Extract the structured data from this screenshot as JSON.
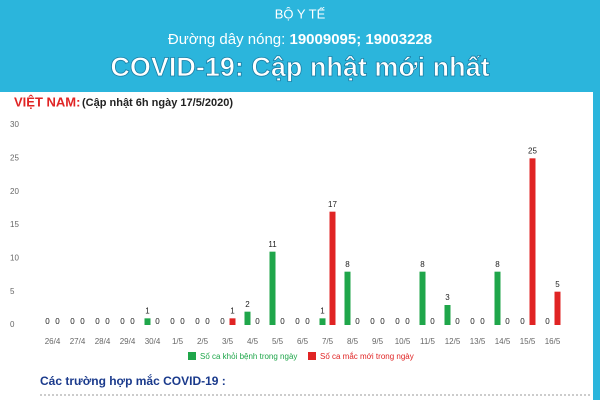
{
  "header": {
    "org": "BỘ Y TẾ",
    "hotline_label": "Đường dây nóng:",
    "hotline_numbers": "19009095; 19003228",
    "title": "COVID-19: Cập nhật mới nhất"
  },
  "chart_data": {
    "type": "bar",
    "country": "VIỆT NAM:",
    "subtitle": "(Cập nhật 6h ngày 17/5/2020)",
    "categories": [
      "26/4",
      "27/4",
      "28/4",
      "29/4",
      "30/4",
      "1/5",
      "2/5",
      "3/5",
      "4/5",
      "5/5",
      "6/5",
      "7/5",
      "8/5",
      "9/5",
      "10/5",
      "11/5",
      "12/5",
      "13/5",
      "14/5",
      "15/5",
      "16/5"
    ],
    "series": [
      {
        "name": "Số ca khỏi bệnh trong ngày",
        "color": "#1fa64a",
        "values": [
          0,
          0,
          0,
          0,
          1,
          0,
          0,
          0,
          2,
          11,
          0,
          1,
          8,
          0,
          0,
          8,
          3,
          0,
          8,
          0,
          0
        ]
      },
      {
        "name": "Số ca mắc mới trong ngày",
        "color": "#e02424",
        "values": [
          0,
          0,
          0,
          0,
          0,
          0,
          0,
          1,
          0,
          0,
          0,
          17,
          0,
          0,
          0,
          0,
          0,
          0,
          0,
          25,
          5
        ]
      }
    ],
    "ylim": [
      0,
      30
    ],
    "yticks": [
      0,
      5,
      10,
      15,
      20,
      25,
      30
    ]
  },
  "footer": {
    "section": "Các trường hợp mắc COVID-19 :"
  }
}
